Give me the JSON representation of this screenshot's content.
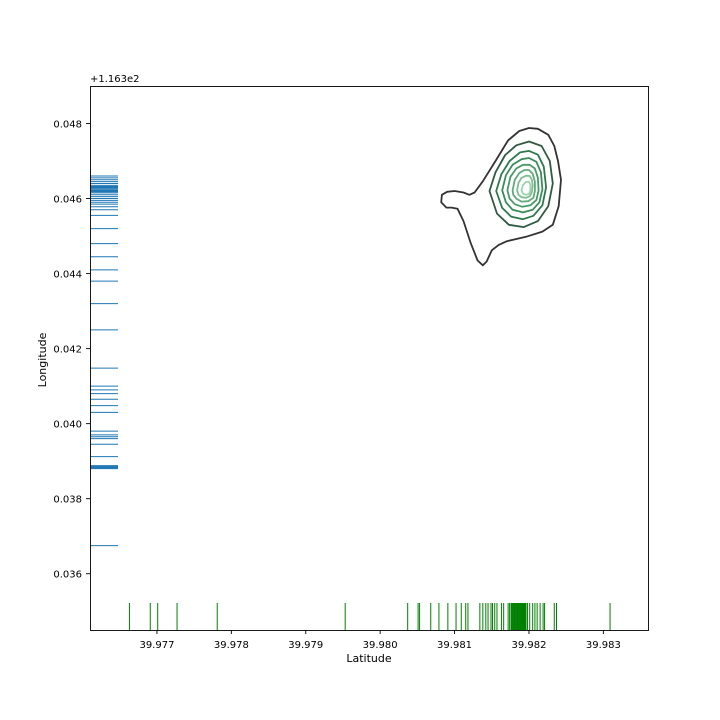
{
  "chart_data": {
    "type": "kde-rug",
    "title": "",
    "xlabel": "Latitude",
    "ylabel": "Longitude",
    "y_offset_label": "+1.163e2",
    "xlim": [
      39.9761,
      39.9836
    ],
    "ylim": [
      0.0345,
      0.049
    ],
    "x_ticks": [
      39.977,
      39.978,
      39.979,
      39.98,
      39.981,
      39.982,
      39.983
    ],
    "x_tick_labels": [
      "39.977",
      "39.978",
      "39.979",
      "39.980",
      "39.981",
      "39.982",
      "39.983"
    ],
    "y_ticks": [
      0.036,
      0.038,
      0.04,
      0.042,
      0.044,
      0.046,
      0.048
    ],
    "y_tick_labels": [
      "0.036",
      "0.038",
      "0.040",
      "0.042",
      "0.044",
      "0.046",
      "0.048"
    ],
    "grid": false,
    "legend": "none",
    "rug_x": {
      "color": "#008000",
      "values": [
        39.97663,
        39.97691,
        39.97701,
        39.97727,
        39.97781,
        39.97953,
        39.98037,
        39.98051,
        39.98053,
        39.98068,
        39.98079,
        39.98091,
        39.98102,
        39.98109,
        39.98115,
        39.98118,
        39.98134,
        39.98138,
        39.98142,
        39.98145,
        39.98149,
        39.98151,
        39.98154,
        39.98157,
        39.98163,
        39.98166,
        39.98172,
        39.98174,
        39.98176,
        39.98177,
        39.98178,
        39.98179,
        39.9818,
        39.98181,
        39.98182,
        39.98183,
        39.98184,
        39.98185,
        39.98186,
        39.98187,
        39.98188,
        39.98189,
        39.9819,
        39.98191,
        39.98192,
        39.98193,
        39.98194,
        39.98195,
        39.98196,
        39.98198,
        39.98201,
        39.98205,
        39.98208,
        39.98211,
        39.98215,
        39.98219,
        39.98221,
        39.98234,
        39.98237,
        39.98309
      ]
    },
    "rug_y": {
      "color": "#1f77b4",
      "values": [
        0.03675,
        0.0388,
        0.03882,
        0.03884,
        0.03886,
        0.03888,
        0.03912,
        0.03945,
        0.0396,
        0.03965,
        0.0397,
        0.0398,
        0.0403,
        0.04048,
        0.04065,
        0.0408,
        0.0409,
        0.041,
        0.04148,
        0.0425,
        0.0432,
        0.0438,
        0.0441,
        0.04445,
        0.0448,
        0.0452,
        0.04555,
        0.0457,
        0.04578,
        0.04585,
        0.0459,
        0.04595,
        0.046,
        0.04605,
        0.0461,
        0.04615,
        0.04618,
        0.0462,
        0.04622,
        0.04625,
        0.04628,
        0.0463,
        0.04632,
        0.04635,
        0.0464,
        0.04645,
        0.0465,
        0.04655,
        0.0466
      ]
    },
    "kde_contours": {
      "colors": [
        "#333333",
        "#305a42",
        "#2e7a4c",
        "#3a8c58",
        "#4a9a66",
        "#60a978",
        "#7dbf90",
        "#9dd3ad"
      ],
      "levels": [
        [
          [
            39.98083,
            0.0461
          ],
          [
            39.9809,
            0.04618
          ],
          [
            39.981,
            0.0462
          ],
          [
            39.98112,
            0.04616
          ],
          [
            39.9812,
            0.0461
          ],
          [
            39.98127,
            0.04616
          ],
          [
            39.98138,
            0.04646
          ],
          [
            39.98155,
            0.047
          ],
          [
            39.98172,
            0.04755
          ],
          [
            39.98187,
            0.0478
          ],
          [
            39.982,
            0.04788
          ],
          [
            39.98212,
            0.04786
          ],
          [
            39.98226,
            0.0477
          ],
          [
            39.98234,
            0.0474
          ],
          [
            39.98239,
            0.047
          ],
          [
            39.98243,
            0.0465
          ],
          [
            39.9824,
            0.0458
          ],
          [
            39.98232,
            0.0453
          ],
          [
            39.98218,
            0.04512
          ],
          [
            39.98196,
            0.04498
          ],
          [
            39.9817,
            0.04486
          ],
          [
            39.98159,
            0.04476
          ],
          [
            39.9815,
            0.04462
          ],
          [
            39.98143,
            0.04432
          ],
          [
            39.98138,
            0.04422
          ],
          [
            39.98131,
            0.04435
          ],
          [
            39.98122,
            0.0448
          ],
          [
            39.98112,
            0.0454
          ],
          [
            39.98104,
            0.04573
          ],
          [
            39.98096,
            0.04576
          ],
          [
            39.98089,
            0.04576
          ],
          [
            39.98082,
            0.0459
          ],
          [
            39.98083,
            0.0461
          ]
        ],
        [
          [
            39.98147,
            0.0462
          ],
          [
            39.98155,
            0.0467
          ],
          [
            39.98168,
            0.04716
          ],
          [
            39.98183,
            0.04742
          ],
          [
            39.982,
            0.04752
          ],
          [
            39.98217,
            0.0474
          ],
          [
            39.98228,
            0.047
          ],
          [
            39.98232,
            0.0464
          ],
          [
            39.98226,
            0.0458
          ],
          [
            39.98212,
            0.0454
          ],
          [
            39.98193,
            0.04524
          ],
          [
            39.98173,
            0.0453
          ],
          [
            39.98157,
            0.0456
          ],
          [
            39.98147,
            0.0462
          ]
        ],
        [
          [
            39.98156,
            0.0462
          ],
          [
            39.98163,
            0.04665
          ],
          [
            39.98174,
            0.047
          ],
          [
            39.98188,
            0.04723
          ],
          [
            39.982,
            0.04727
          ],
          [
            39.98212,
            0.04717
          ],
          [
            39.9822,
            0.04685
          ],
          [
            39.98223,
            0.0463
          ],
          [
            39.98218,
            0.04582
          ],
          [
            39.98206,
            0.04554
          ],
          [
            39.98192,
            0.04545
          ],
          [
            39.98176,
            0.04552
          ],
          [
            39.98164,
            0.04575
          ],
          [
            39.98156,
            0.0462
          ]
        ],
        [
          [
            39.98164,
            0.04622
          ],
          [
            39.98169,
            0.04662
          ],
          [
            39.98178,
            0.0469
          ],
          [
            39.9819,
            0.04705
          ],
          [
            39.982,
            0.04708
          ],
          [
            39.9821,
            0.04698
          ],
          [
            39.98216,
            0.0467
          ],
          [
            39.98218,
            0.04625
          ],
          [
            39.98214,
            0.0459
          ],
          [
            39.98205,
            0.0457
          ],
          [
            39.98192,
            0.04563
          ],
          [
            39.98178,
            0.0457
          ],
          [
            39.98169,
            0.0459
          ],
          [
            39.98164,
            0.04622
          ]
        ],
        [
          [
            39.98171,
            0.04622
          ],
          [
            39.98175,
            0.04658
          ],
          [
            39.98183,
            0.0468
          ],
          [
            39.98192,
            0.0469
          ],
          [
            39.98201,
            0.0469
          ],
          [
            39.98208,
            0.0468
          ],
          [
            39.98212,
            0.04655
          ],
          [
            39.98213,
            0.04622
          ],
          [
            39.9821,
            0.04596
          ],
          [
            39.98202,
            0.04582
          ],
          [
            39.98191,
            0.04578
          ],
          [
            39.98181,
            0.04585
          ],
          [
            39.98174,
            0.046
          ],
          [
            39.98171,
            0.04622
          ]
        ],
        [
          [
            39.98178,
            0.04622
          ],
          [
            39.98181,
            0.0465
          ],
          [
            39.98187,
            0.04668
          ],
          [
            39.98194,
            0.04676
          ],
          [
            39.982,
            0.04676
          ],
          [
            39.98205,
            0.04666
          ],
          [
            39.98208,
            0.04645
          ],
          [
            39.98208,
            0.0462
          ],
          [
            39.98206,
            0.04602
          ],
          [
            39.98199,
            0.04593
          ],
          [
            39.9819,
            0.04592
          ],
          [
            39.98183,
            0.046
          ],
          [
            39.98179,
            0.0461
          ],
          [
            39.98178,
            0.04622
          ]
        ],
        [
          [
            39.98184,
            0.04622
          ],
          [
            39.98186,
            0.04642
          ],
          [
            39.9819,
            0.04655
          ],
          [
            39.98196,
            0.04661
          ],
          [
            39.98201,
            0.0466
          ],
          [
            39.98204,
            0.0465
          ],
          [
            39.98205,
            0.04635
          ],
          [
            39.98204,
            0.04617
          ],
          [
            39.98201,
            0.04606
          ],
          [
            39.98196,
            0.04602
          ],
          [
            39.9819,
            0.04604
          ],
          [
            39.98186,
            0.0461
          ],
          [
            39.98184,
            0.04622
          ]
        ],
        [
          [
            39.9819,
            0.04622
          ],
          [
            39.98192,
            0.04636
          ],
          [
            39.98196,
            0.04644
          ],
          [
            39.982,
            0.04645
          ],
          [
            39.98202,
            0.04637
          ],
          [
            39.98202,
            0.04622
          ],
          [
            39.982,
            0.04612
          ],
          [
            39.98196,
            0.0461
          ],
          [
            39.98192,
            0.04613
          ],
          [
            39.9819,
            0.04622
          ]
        ]
      ]
    }
  }
}
